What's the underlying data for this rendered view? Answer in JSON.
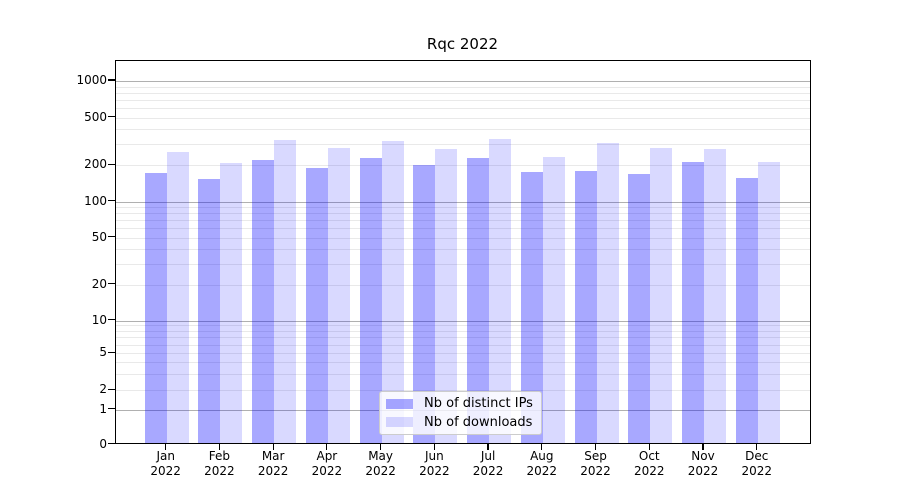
{
  "chart_data": {
    "type": "bar",
    "title": "Rqc 2022",
    "categories": [
      "Jan 2022",
      "Feb 2022",
      "Mar 2022",
      "Apr 2022",
      "May 2022",
      "Jun 2022",
      "Jul 2022",
      "Aug 2022",
      "Sep 2022",
      "Oct 2022",
      "Nov 2022",
      "Dec 2022"
    ],
    "series": [
      {
        "name": "Nb of distinct IPs",
        "color": "rgba(0,0,255,0.34)",
        "values": [
          165,
          147,
          211,
          183,
          221,
          192,
          221,
          169,
          174,
          164,
          204,
          152
        ]
      },
      {
        "name": "Nb of downloads",
        "color": "rgba(0,0,255,0.15)",
        "values": [
          250,
          200,
          315,
          268,
          308,
          261,
          318,
          227,
          296,
          268,
          264,
          203
        ]
      }
    ],
    "y_axis": {
      "scale": "symlog",
      "tick_labels": [
        "0",
        "1",
        "2",
        "5",
        "10",
        "20",
        "50",
        "100",
        "200",
        "500",
        "1000"
      ],
      "tick_values": [
        0,
        1,
        2,
        5,
        10,
        20,
        50,
        100,
        200,
        500,
        1000
      ]
    },
    "x_axis": {
      "tick_labels_line2": "2022"
    },
    "legend": {
      "position": "lower center",
      "entries": [
        "Nb of distinct IPs",
        "Nb of downloads"
      ]
    },
    "grid": {
      "on": true,
      "major_values": [
        1,
        10,
        100,
        1000
      ],
      "minor_values": [
        2,
        3,
        4,
        5,
        6,
        7,
        8,
        9,
        20,
        30,
        40,
        50,
        60,
        70,
        80,
        90,
        200,
        300,
        400,
        500,
        600,
        700,
        800,
        900
      ],
      "major_color": "#b0b0b0",
      "minor_color": "#e9e9e9"
    },
    "colors": {
      "bar_base": "#0000ff",
      "background": "#ffffff",
      "text": "#000000"
    }
  }
}
